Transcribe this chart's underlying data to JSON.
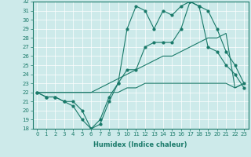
{
  "title": "",
  "xlabel": "Humidex (Indice chaleur)",
  "background_color": "#cdeaea",
  "line_color": "#1a7a6a",
  "x_values": [
    0,
    1,
    2,
    3,
    4,
    5,
    6,
    7,
    8,
    9,
    10,
    11,
    12,
    13,
    14,
    15,
    16,
    17,
    18,
    19,
    20,
    21,
    22,
    23
  ],
  "line1_y": [
    22,
    21.5,
    21.5,
    21,
    20.5,
    19,
    18,
    18.5,
    21,
    23,
    24.5,
    24.5,
    27,
    27.5,
    27.5,
    27.5,
    29,
    32,
    31.5,
    27,
    26.5,
    25,
    24,
    22.5
  ],
  "line2_y": [
    22,
    21.5,
    21.5,
    21,
    21,
    20,
    18,
    19,
    21.5,
    23,
    29,
    31.5,
    31,
    29,
    31,
    30.5,
    31.5,
    32,
    31.5,
    31,
    29,
    26.5,
    25,
    23
  ],
  "line3_y": [
    22,
    22,
    22,
    22,
    22,
    22,
    22,
    22.5,
    23,
    23.5,
    24,
    24.5,
    25,
    25.5,
    26,
    26,
    26.5,
    27,
    27.5,
    28,
    28,
    28.5,
    22.5,
    23
  ],
  "line4_y": [
    22,
    22,
    22,
    22,
    22,
    22,
    22,
    22,
    22,
    22,
    22.5,
    22.5,
    23,
    23,
    23,
    23,
    23,
    23,
    23,
    23,
    23,
    23,
    22.5,
    23
  ],
  "ylim": [
    18,
    32
  ],
  "xlim": [
    -0.5,
    23.5
  ],
  "yticks": [
    18,
    19,
    20,
    21,
    22,
    23,
    24,
    25,
    26,
    27,
    28,
    29,
    30,
    31,
    32
  ],
  "xticks": [
    0,
    1,
    2,
    3,
    4,
    5,
    6,
    7,
    8,
    9,
    10,
    11,
    12,
    13,
    14,
    15,
    16,
    17,
    18,
    19,
    20,
    21,
    22,
    23
  ],
  "tick_fontsize": 5,
  "xlabel_fontsize": 6
}
